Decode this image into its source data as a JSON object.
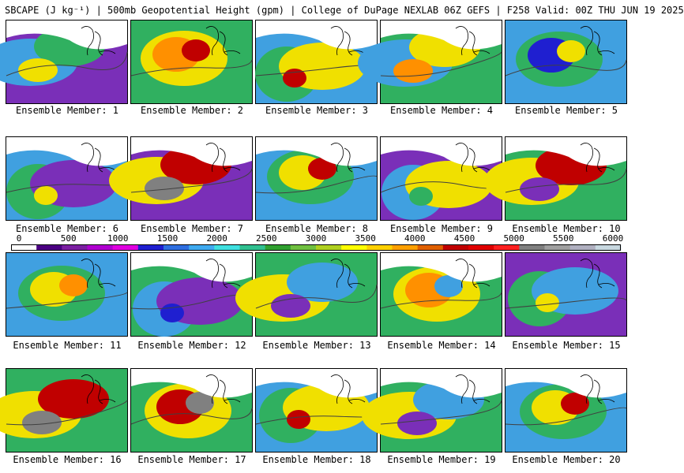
{
  "title": "SBCAPE (J kg⁻¹) | 500mb Geopotential Height (gpm) | College of DuPage NEXLAB 06Z GEFS | F258 Valid: 00Z THU JUN 19 2025",
  "colorbar": {
    "ticks": [
      "0",
      "500",
      "1000",
      "1500",
      "2000",
      "2500",
      "3000",
      "3500",
      "4000",
      "4500",
      "5000",
      "5500",
      "6000"
    ],
    "colors": [
      "#ffffff",
      "#4b0082",
      "#7b1fa2",
      "#b000d0",
      "#e000e0",
      "#1f1fd0",
      "#2f6fe0",
      "#3faaf0",
      "#40e0e0",
      "#30c090",
      "#30a030",
      "#70c040",
      "#b0d020",
      "#ffff00",
      "#ffd000",
      "#ffa000",
      "#e06000",
      "#c00000",
      "#e00000",
      "#ff2020",
      "#808080",
      "#a0a0a0",
      "#b0b0c0",
      "#c8d8e0"
    ]
  },
  "members": [
    {
      "label": "Ensemble Member: 1",
      "base": "#7a2fb8",
      "blobs": [
        {
          "c": "#40a0e0"
        },
        {
          "c": "#30b060"
        },
        {
          "c": "#f0e000"
        }
      ],
      "white_top": true
    },
    {
      "label": "Ensemble Member: 2",
      "base": "#30b060",
      "blobs": [
        {
          "c": "#f0e000"
        },
        {
          "c": "#ff9000"
        },
        {
          "c": "#c00000"
        }
      ],
      "white_top": false
    },
    {
      "label": "Ensemble Member: 3",
      "base": "#40a0e0",
      "blobs": [
        {
          "c": "#30b060"
        },
        {
          "c": "#f0e000"
        },
        {
          "c": "#c00000"
        }
      ],
      "white_top": true
    },
    {
      "label": "Ensemble Member: 4",
      "base": "#30b060",
      "blobs": [
        {
          "c": "#40a0e0"
        },
        {
          "c": "#f0e000"
        },
        {
          "c": "#ff9000"
        }
      ],
      "white_top": true
    },
    {
      "label": "Ensemble Member: 5",
      "base": "#40a0e0",
      "blobs": [
        {
          "c": "#30b060"
        },
        {
          "c": "#1f1fd0"
        },
        {
          "c": "#f0e000"
        }
      ],
      "white_top": false
    },
    {
      "label": "Ensemble Member: 6",
      "base": "#40a0e0",
      "blobs": [
        {
          "c": "#30b060"
        },
        {
          "c": "#7a2fb8"
        },
        {
          "c": "#f0e000"
        }
      ],
      "white_top": true
    },
    {
      "label": "Ensemble Member: 7",
      "base": "#7a2fb8",
      "blobs": [
        {
          "c": "#f0e000"
        },
        {
          "c": "#c00000"
        },
        {
          "c": "#808080"
        }
      ],
      "white_top": true
    },
    {
      "label": "Ensemble Member: 8",
      "base": "#40a0e0",
      "blobs": [
        {
          "c": "#30b060"
        },
        {
          "c": "#f0e000"
        },
        {
          "c": "#c00000"
        }
      ],
      "white_top": true
    },
    {
      "label": "Ensemble Member: 9",
      "base": "#7a2fb8",
      "blobs": [
        {
          "c": "#40a0e0"
        },
        {
          "c": "#f0e000"
        },
        {
          "c": "#30b060"
        }
      ],
      "white_top": true
    },
    {
      "label": "Ensemble Member: 10",
      "base": "#30b060",
      "blobs": [
        {
          "c": "#f0e000"
        },
        {
          "c": "#c00000"
        },
        {
          "c": "#7a2fb8"
        }
      ],
      "white_top": true
    },
    {
      "label": "Ensemble Member: 11",
      "base": "#40a0e0",
      "blobs": [
        {
          "c": "#30b060"
        },
        {
          "c": "#f0e000"
        },
        {
          "c": "#ff9000"
        }
      ],
      "white_top": false
    },
    {
      "label": "Ensemble Member: 12",
      "base": "#30b060",
      "blobs": [
        {
          "c": "#40a0e0"
        },
        {
          "c": "#7a2fb8"
        },
        {
          "c": "#1f1fd0"
        }
      ],
      "white_top": true
    },
    {
      "label": "Ensemble Member: 13",
      "base": "#30b060",
      "blobs": [
        {
          "c": "#f0e000"
        },
        {
          "c": "#40a0e0"
        },
        {
          "c": "#7a2fb8"
        }
      ],
      "white_top": false
    },
    {
      "label": "Ensemble Member: 14",
      "base": "#30b060",
      "blobs": [
        {
          "c": "#f0e000"
        },
        {
          "c": "#ff9000"
        },
        {
          "c": "#40a0e0"
        }
      ],
      "white_top": true
    },
    {
      "label": "Ensemble Member: 15",
      "base": "#7a2fb8",
      "blobs": [
        {
          "c": "#30b060"
        },
        {
          "c": "#40a0e0"
        },
        {
          "c": "#f0e000"
        }
      ],
      "white_top": false
    },
    {
      "label": "Ensemble Member: 16",
      "base": "#30b060",
      "blobs": [
        {
          "c": "#f0e000"
        },
        {
          "c": "#c00000"
        },
        {
          "c": "#808080"
        }
      ],
      "white_top": false
    },
    {
      "label": "Ensemble Member: 17",
      "base": "#30b060",
      "blobs": [
        {
          "c": "#f0e000"
        },
        {
          "c": "#c00000"
        },
        {
          "c": "#808080"
        }
      ],
      "white_top": true
    },
    {
      "label": "Ensemble Member: 18",
      "base": "#40a0e0",
      "blobs": [
        {
          "c": "#30b060"
        },
        {
          "c": "#f0e000"
        },
        {
          "c": "#c00000"
        }
      ],
      "white_top": true
    },
    {
      "label": "Ensemble Member: 19",
      "base": "#30b060",
      "blobs": [
        {
          "c": "#f0e000"
        },
        {
          "c": "#40a0e0"
        },
        {
          "c": "#7a2fb8"
        }
      ],
      "white_top": true
    },
    {
      "label": "Ensemble Member: 20",
      "base": "#40a0e0",
      "blobs": [
        {
          "c": "#30b060"
        },
        {
          "c": "#f0e000"
        },
        {
          "c": "#c00000"
        }
      ],
      "white_top": true
    }
  ]
}
